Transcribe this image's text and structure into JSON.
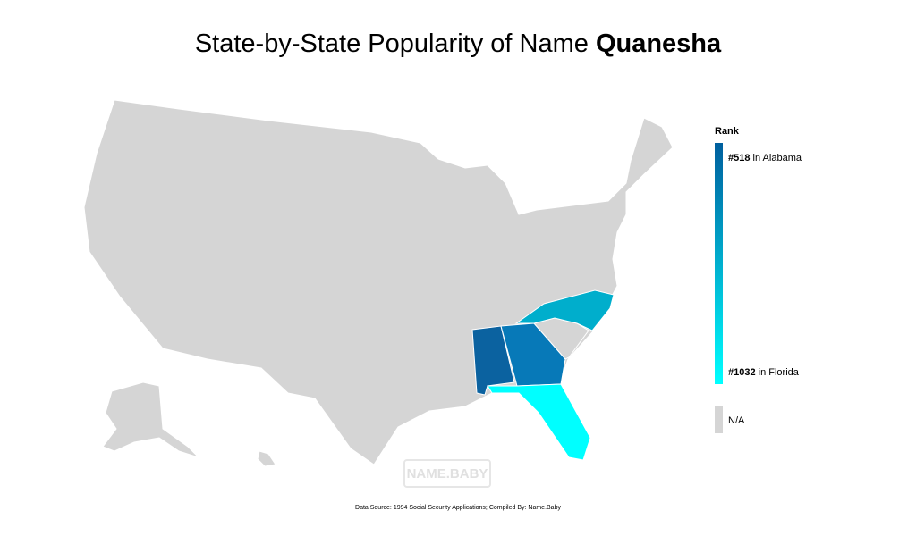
{
  "header": {
    "title": "State-by-State Popularity of Name",
    "name": "Quanesha"
  },
  "legend": {
    "title": "Rank",
    "top": {
      "rank": "#518",
      "place": "in Alabama",
      "color": "#005f9e"
    },
    "bottom": {
      "rank": "#1032",
      "place": "in Florida",
      "color": "#00ffff"
    },
    "na": {
      "label": "N/A",
      "color": "#d5d5d5"
    }
  },
  "watermark": "NAME.BABY",
  "footer": "Data Source: 1994 Social Security Applications; Compiled By: Name.Baby"
}
